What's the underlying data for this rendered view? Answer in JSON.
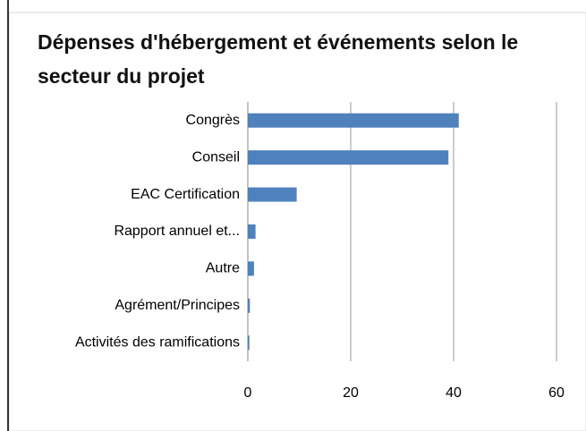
{
  "chart_data": {
    "type": "barh",
    "title": "Dépenses d'hébergement et événements selon le secteur du projet",
    "categories": [
      "Congrès",
      "Conseil",
      "EAC Certification",
      "Rapport annuel et...",
      "Autre",
      "Agrément/Principes",
      "Activités des ramifications"
    ],
    "values": [
      41,
      39,
      9.5,
      1.5,
      1.2,
      0.4,
      0.3
    ],
    "color": "#4f81bd",
    "xlim": [
      0,
      60
    ],
    "xticks": [
      0,
      20,
      40,
      60
    ],
    "grid": true
  }
}
